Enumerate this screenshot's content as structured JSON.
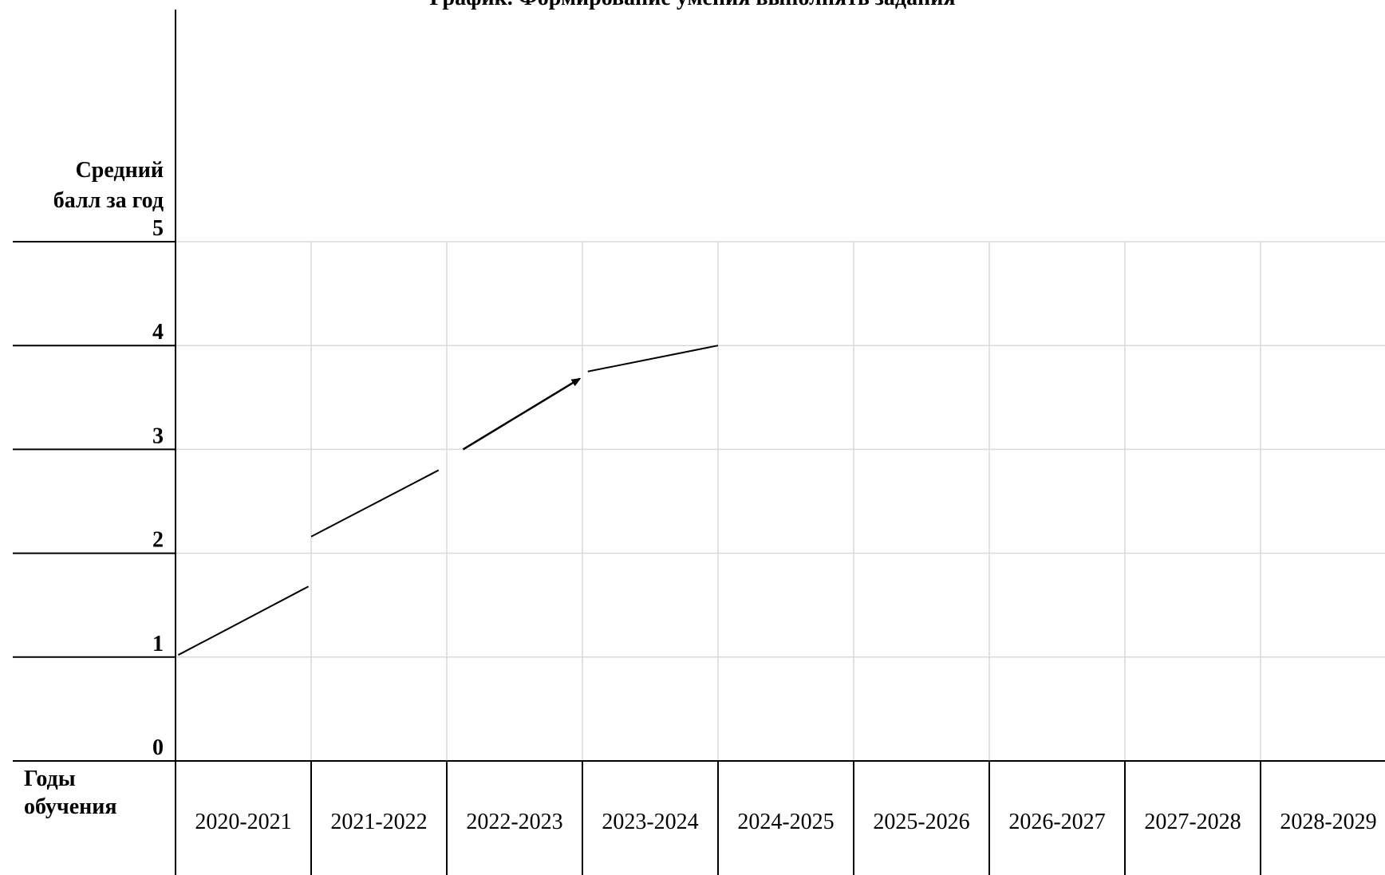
{
  "chart_data": {
    "type": "line",
    "title": "График. Формирование умения выполнять задания",
    "ylabel": [
      "Средний",
      "балл за год"
    ],
    "xlabel": [
      "Годы",
      "обучения"
    ],
    "y_ticks": [
      "0",
      "1",
      "2",
      "3",
      "4",
      "5"
    ],
    "ylim": [
      0,
      5
    ],
    "categories": [
      "2020-2021",
      "2021-2022",
      "2022-2023",
      "2023-2024",
      "2024-2025",
      "2025-2026",
      "2026-2027",
      "2027-2028",
      "2028-2029"
    ],
    "segments": [
      {
        "x": [
          0.02,
          0.98
        ],
        "y": [
          1.02,
          1.68
        ],
        "arrow": false
      },
      {
        "x": [
          1.0,
          1.94
        ],
        "y": [
          2.16,
          2.8
        ],
        "arrow": false
      },
      {
        "x": [
          2.12,
          2.98
        ],
        "y": [
          3.0,
          3.68
        ],
        "arrow": true
      },
      {
        "x": [
          3.04,
          4.0
        ],
        "y": [
          3.75,
          4.0
        ],
        "arrow": false
      }
    ],
    "grid": true,
    "colors": {
      "line": "#000000",
      "grid": "#d9d9d9",
      "axis": "#000000"
    }
  }
}
